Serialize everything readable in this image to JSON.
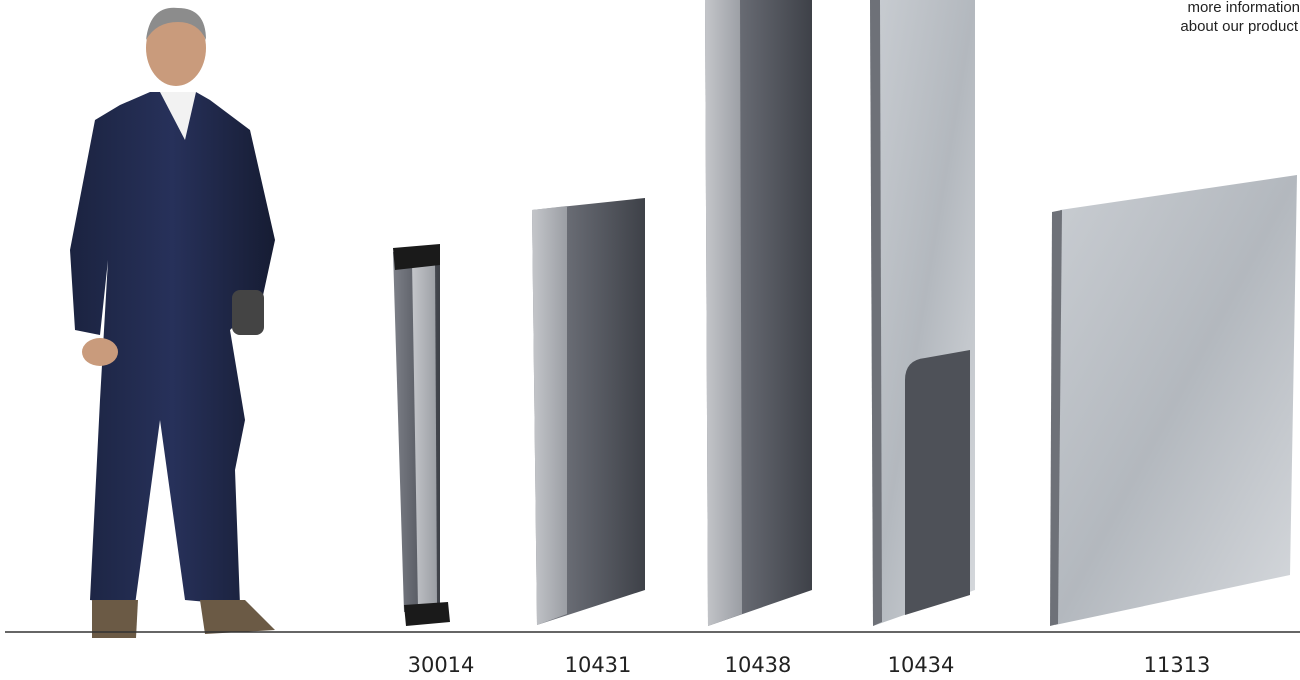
{
  "info": {
    "line1": "more information",
    "line2": "about our product"
  },
  "products": [
    {
      "code": "30014"
    },
    {
      "code": "10431"
    },
    {
      "code": "10438"
    },
    {
      "code": "10434"
    },
    {
      "code": "11313"
    }
  ]
}
